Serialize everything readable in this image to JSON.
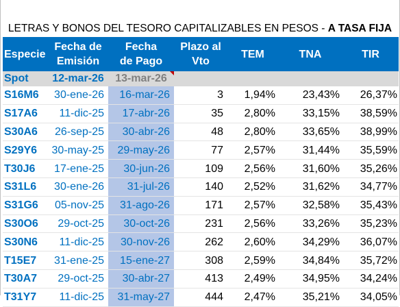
{
  "title": {
    "prefix": "LETRAS Y BONOS DEL TESORO CAPITALIZABLES EN PESOS - ",
    "emphasis": "A TASA FIJA"
  },
  "headers": {
    "especie": "Especie",
    "fecha_emision_1": "Fecha de",
    "fecha_emision_2": "Emisión",
    "fecha_pago_1": "Fecha",
    "fecha_pago_2": "de Pago",
    "plazo_1": "Plazo al",
    "plazo_2": "Vto",
    "tem": "TEM",
    "tna": "TNA",
    "tir": "TIR"
  },
  "spot": {
    "label": "Spot",
    "fecha_emision": "12-mar-26",
    "fecha_pago": "13-mar-26"
  },
  "rows": [
    {
      "especie": "S16M6",
      "fecha_emision": "30-ene-26",
      "fecha_pago": "16-mar-26",
      "plazo": "3",
      "tem": "1,94%",
      "tna": "23,43%",
      "tir": "26,37%"
    },
    {
      "especie": "S17A6",
      "fecha_emision": "11-dic-25",
      "fecha_pago": "17-abr-26",
      "plazo": "35",
      "tem": "2,80%",
      "tna": "33,15%",
      "tir": "38,59%"
    },
    {
      "especie": "S30A6",
      "fecha_emision": "26-sep-25",
      "fecha_pago": "30-abr-26",
      "plazo": "48",
      "tem": "2,80%",
      "tna": "33,65%",
      "tir": "38,99%"
    },
    {
      "especie": "S29Y6",
      "fecha_emision": "30-may-25",
      "fecha_pago": "29-may-26",
      "plazo": "77",
      "tem": "2,57%",
      "tna": "31,44%",
      "tir": "35,59%"
    },
    {
      "especie": "T30J6",
      "fecha_emision": "17-ene-25",
      "fecha_pago": "30-jun-26",
      "plazo": "109",
      "tem": "2,56%",
      "tna": "31,60%",
      "tir": "35,26%"
    },
    {
      "especie": "S31L6",
      "fecha_emision": "30-ene-26",
      "fecha_pago": "31-jul-26",
      "plazo": "140",
      "tem": "2,52%",
      "tna": "31,62%",
      "tir": "34,77%"
    },
    {
      "especie": "S31G6",
      "fecha_emision": "05-nov-25",
      "fecha_pago": "31-ago-26",
      "plazo": "171",
      "tem": "2,57%",
      "tna": "32,58%",
      "tir": "35,43%"
    },
    {
      "especie": "S30O6",
      "fecha_emision": "29-oct-25",
      "fecha_pago": "30-oct-26",
      "plazo": "231",
      "tem": "2,56%",
      "tna": "33,26%",
      "tir": "35,23%"
    },
    {
      "especie": "S30N6",
      "fecha_emision": "11-dic-25",
      "fecha_pago": "30-nov-26",
      "plazo": "262",
      "tem": "2,60%",
      "tna": "34,29%",
      "tir": "36,07%"
    },
    {
      "especie": "T15E7",
      "fecha_emision": "31-ene-25",
      "fecha_pago": "15-ene-27",
      "plazo": "308",
      "tem": "2,59%",
      "tna": "34,84%",
      "tir": "35,72%"
    },
    {
      "especie": "T30A7",
      "fecha_emision": "29-oct-25",
      "fecha_pago": "30-abr-27",
      "plazo": "413",
      "tem": "2,49%",
      "tna": "34,95%",
      "tir": "34,24%"
    },
    {
      "especie": "T31Y7",
      "fecha_emision": "11-dic-25",
      "fecha_pago": "31-may-27",
      "plazo": "444",
      "tem": "2,47%",
      "tna": "35,21%",
      "tir": "34,05%"
    }
  ],
  "colors": {
    "header_bg": "#0070c0",
    "accent_text": "#0070c0",
    "pay_date_bg": "#b4c6e7",
    "spot_bg": "#d9d9d9",
    "comment_marker": "#c00000"
  }
}
